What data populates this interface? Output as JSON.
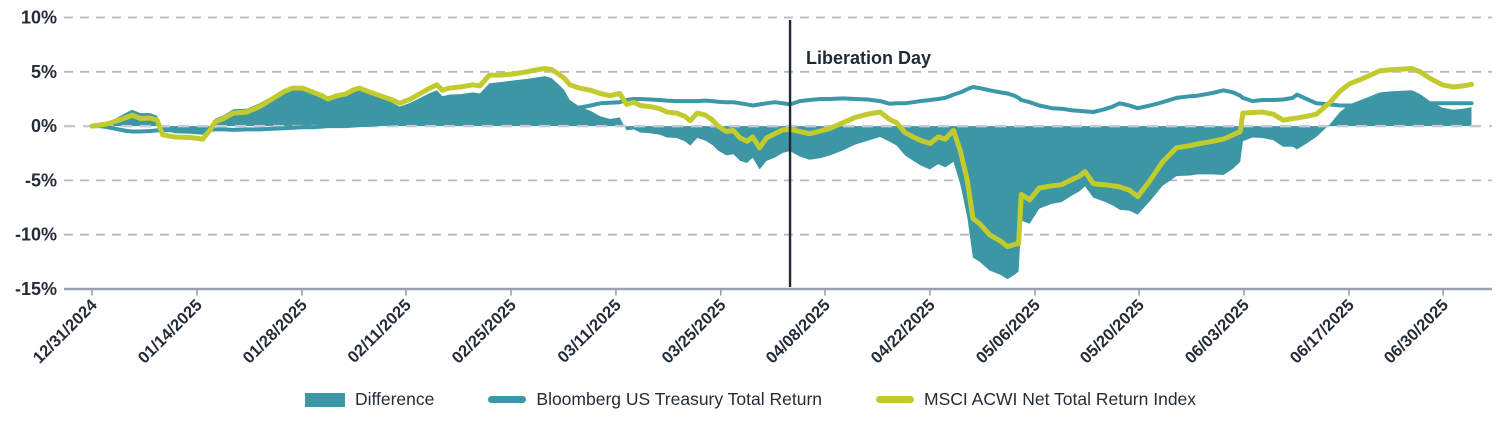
{
  "colors": {
    "difference_area": "#3d96a4",
    "treasury_line": "#3a98a8",
    "msci_line": "#c2cb2e",
    "text_dark": "#232c38",
    "annotation_line": "#1f2a37",
    "gridline": "#b3b9c2",
    "zero_gridline": "#c6cbd3",
    "axis_line": "#9aa1ac",
    "background": "#ffffff"
  },
  "legend": {
    "items": [
      {
        "label": "Difference",
        "color": "#3d96a4",
        "swatch": "rect"
      },
      {
        "label": "Bloomberg US Treasury Total Return",
        "color": "#3a98a8",
        "swatch": "line"
      },
      {
        "label": "MSCI ACWI Net Total Return Index",
        "color": "#c2cb2e",
        "swatch": "line"
      }
    ]
  },
  "chart_data": {
    "type": "area",
    "title": "",
    "xlabel": "",
    "ylabel": "",
    "grid": "horizontal-dashed",
    "legend_position": "bottom-center",
    "y_axis": {
      "min": -15,
      "max": 10,
      "ticks": [
        {
          "label": "10%",
          "value": 10
        },
        {
          "label": "5%",
          "value": 5
        },
        {
          "label": "0%",
          "value": 0
        },
        {
          "label": "-5%",
          "value": -5
        },
        {
          "label": "-10%",
          "value": -10
        },
        {
          "label": "-15%",
          "value": -15
        }
      ]
    },
    "x_axis": {
      "ticks": [
        {
          "label": "12/31/2024",
          "t": 0.0
        },
        {
          "label": "01/14/2025",
          "t": 0.0758
        },
        {
          "label": "01/28/2025",
          "t": 0.1516
        },
        {
          "label": "02/11/2025",
          "t": 0.2267
        },
        {
          "label": "02/25/2025",
          "t": 0.3025
        },
        {
          "label": "03/11/2025",
          "t": 0.3783
        },
        {
          "label": "03/25/2025",
          "t": 0.454
        },
        {
          "label": "04/08/2025",
          "t": 0.5292
        },
        {
          "label": "04/22/2025",
          "t": 0.605
        },
        {
          "label": "05/06/2025",
          "t": 0.6809
        },
        {
          "label": "05/20/2025",
          "t": 0.756
        },
        {
          "label": "06/03/2025",
          "t": 0.8318
        },
        {
          "label": "06/17/2025",
          "t": 0.9076
        },
        {
          "label": "06/30/2025",
          "t": 0.9755
        }
      ]
    },
    "annotation": {
      "text": "Liberation Day",
      "t": 0.504
    },
    "x": [
      0,
      0.006,
      0.011,
      0.017,
      0.025,
      0.029,
      0.035,
      0.042,
      0.047,
      0.051,
      0.06,
      0.071,
      0.08,
      0.085,
      0.089,
      0.095,
      0.102,
      0.112,
      0.121,
      0.13,
      0.139,
      0.145,
      0.152,
      0.16,
      0.166,
      0.17,
      0.177,
      0.183,
      0.188,
      0.193,
      0.199,
      0.208,
      0.217,
      0.222,
      0.23,
      0.237,
      0.244,
      0.249,
      0.253,
      0.258,
      0.266,
      0.275,
      0.28,
      0.287,
      0.295,
      0.304,
      0.314,
      0.322,
      0.327,
      0.332,
      0.338,
      0.341,
      0.345,
      0.352,
      0.36,
      0.367,
      0.374,
      0.381,
      0.386,
      0.391,
      0.396,
      0.403,
      0.41,
      0.415,
      0.422,
      0.428,
      0.432,
      0.437,
      0.443,
      0.448,
      0.452,
      0.458,
      0.463,
      0.468,
      0.473,
      0.477,
      0.482,
      0.487,
      0.493,
      0.499,
      0.504,
      0.511,
      0.518,
      0.526,
      0.533,
      0.542,
      0.551,
      0.56,
      0.569,
      0.576,
      0.581,
      0.587,
      0.593,
      0.598,
      0.605,
      0.611,
      0.616,
      0.622,
      0.627,
      0.632,
      0.636,
      0.641,
      0.648,
      0.656,
      0.661,
      0.666,
      0.669,
      0.671,
      0.677,
      0.684,
      0.693,
      0.7,
      0.708,
      0.713,
      0.717,
      0.723,
      0.731,
      0.737,
      0.742,
      0.749,
      0.755,
      0.764,
      0.773,
      0.783,
      0.793,
      0.798,
      0.809,
      0.817,
      0.824,
      0.829,
      0.831,
      0.838,
      0.845,
      0.853,
      0.86,
      0.867,
      0.87,
      0.877,
      0.884,
      0.894,
      0.901,
      0.908,
      0.916,
      0.923,
      0.93,
      0.939,
      0.946,
      0.953,
      0.959,
      0.966,
      0.975,
      0.983,
      0.99,
      0.996
    ],
    "series": [
      {
        "name": "Difference",
        "type": "area",
        "color": "#3d96a4",
        "derived": true,
        "formula": "msci_minus_treasury"
      },
      {
        "name": "Bloomberg US Treasury Total Return",
        "type": "line",
        "color": "#3a98a8",
        "values": [
          0,
          0,
          -0.1,
          -0.25,
          -0.45,
          -0.5,
          -0.5,
          -0.45,
          -0.4,
          -0.4,
          -0.35,
          -0.35,
          -0.4,
          -0.35,
          -0.3,
          -0.3,
          -0.35,
          -0.3,
          -0.3,
          -0.25,
          -0.2,
          -0.15,
          -0.1,
          -0.1,
          -0.05,
          0,
          0,
          0,
          0.05,
          0.1,
          0.1,
          0.2,
          0.25,
          0.3,
          0.35,
          0.4,
          0.45,
          0.5,
          0.55,
          0.6,
          0.65,
          0.7,
          0.7,
          0.75,
          0.65,
          0.6,
          0.65,
          0.7,
          0.7,
          0.8,
          1.0,
          1.1,
          1.4,
          1.7,
          1.9,
          2.1,
          2.15,
          2.2,
          2.4,
          2.5,
          2.5,
          2.45,
          2.4,
          2.35,
          2.3,
          2.3,
          2.3,
          2.3,
          2.35,
          2.3,
          2.25,
          2.2,
          2.2,
          2.1,
          2.0,
          1.9,
          2.0,
          2.1,
          2.2,
          2.1,
          2.0,
          2.3,
          2.4,
          2.5,
          2.5,
          2.55,
          2.5,
          2.45,
          2.3,
          2.05,
          2.1,
          2.1,
          2.2,
          2.3,
          2.4,
          2.5,
          2.6,
          2.9,
          3.1,
          3.4,
          3.6,
          3.5,
          3.3,
          3.1,
          3.0,
          2.8,
          2.6,
          2.4,
          2.2,
          1.9,
          1.65,
          1.6,
          1.45,
          1.4,
          1.35,
          1.3,
          1.55,
          1.8,
          2.1,
          1.9,
          1.65,
          1.9,
          2.2,
          2.6,
          2.75,
          2.8,
          3.05,
          3.3,
          3.1,
          2.8,
          2.6,
          2.3,
          2.4,
          2.4,
          2.45,
          2.6,
          2.9,
          2.5,
          2.1,
          2.0,
          1.9,
          1.9,
          1.9,
          1.95,
          2.0,
          2.0,
          2.0,
          2.0,
          2.05,
          2.1,
          2.1,
          2.1,
          2.1,
          2.1
        ]
      },
      {
        "name": "MSCI ACWI Net Total Return Index",
        "type": "line",
        "color": "#c2cb2e",
        "values": [
          0,
          0.1,
          0.2,
          0.45,
          0.8,
          1.0,
          0.7,
          0.75,
          0.55,
          -0.8,
          -1.0,
          -1.05,
          -1.2,
          -0.4,
          0.4,
          0.7,
          1.2,
          1.3,
          1.8,
          2.5,
          3.2,
          3.5,
          3.5,
          3.1,
          2.8,
          2.5,
          2.8,
          2.95,
          3.3,
          3.5,
          3.2,
          2.8,
          2.4,
          2.1,
          2.5,
          3.0,
          3.5,
          3.8,
          3.3,
          3.5,
          3.6,
          3.8,
          3.7,
          4.7,
          4.7,
          4.8,
          5.0,
          5.2,
          5.3,
          5.2,
          4.7,
          4.4,
          3.8,
          3.5,
          3.3,
          3.0,
          2.8,
          3.0,
          2.0,
          2.2,
          1.9,
          1.8,
          1.6,
          1.3,
          1.2,
          0.9,
          0.5,
          1.2,
          1.0,
          0.55,
          0.0,
          -0.5,
          -0.4,
          -1.1,
          -1.4,
          -1.0,
          -2.0,
          -1.1,
          -0.7,
          -0.35,
          -0.3,
          -0.5,
          -0.7,
          -0.45,
          -0.2,
          0.3,
          0.8,
          1.1,
          1.3,
          0.6,
          0.3,
          -0.6,
          -1.0,
          -1.3,
          -1.6,
          -1.0,
          -1.2,
          -0.4,
          -2.3,
          -5.0,
          -8.5,
          -9.0,
          -10.0,
          -10.6,
          -11.1,
          -10.9,
          -10.8,
          -6.3,
          -6.8,
          -5.7,
          -5.5,
          -5.4,
          -4.9,
          -4.6,
          -4.2,
          -5.3,
          -5.4,
          -5.5,
          -5.6,
          -5.9,
          -6.5,
          -5.0,
          -3.3,
          -2.0,
          -1.8,
          -1.65,
          -1.4,
          -1.2,
          -0.8,
          -0.5,
          1.2,
          1.25,
          1.3,
          1.1,
          0.55,
          0.7,
          0.75,
          0.9,
          1.1,
          2.2,
          3.2,
          3.9,
          4.3,
          4.7,
          5.1,
          5.2,
          5.25,
          5.3,
          5.0,
          4.4,
          3.8,
          3.6,
          3.7,
          3.85
        ]
      }
    ]
  }
}
